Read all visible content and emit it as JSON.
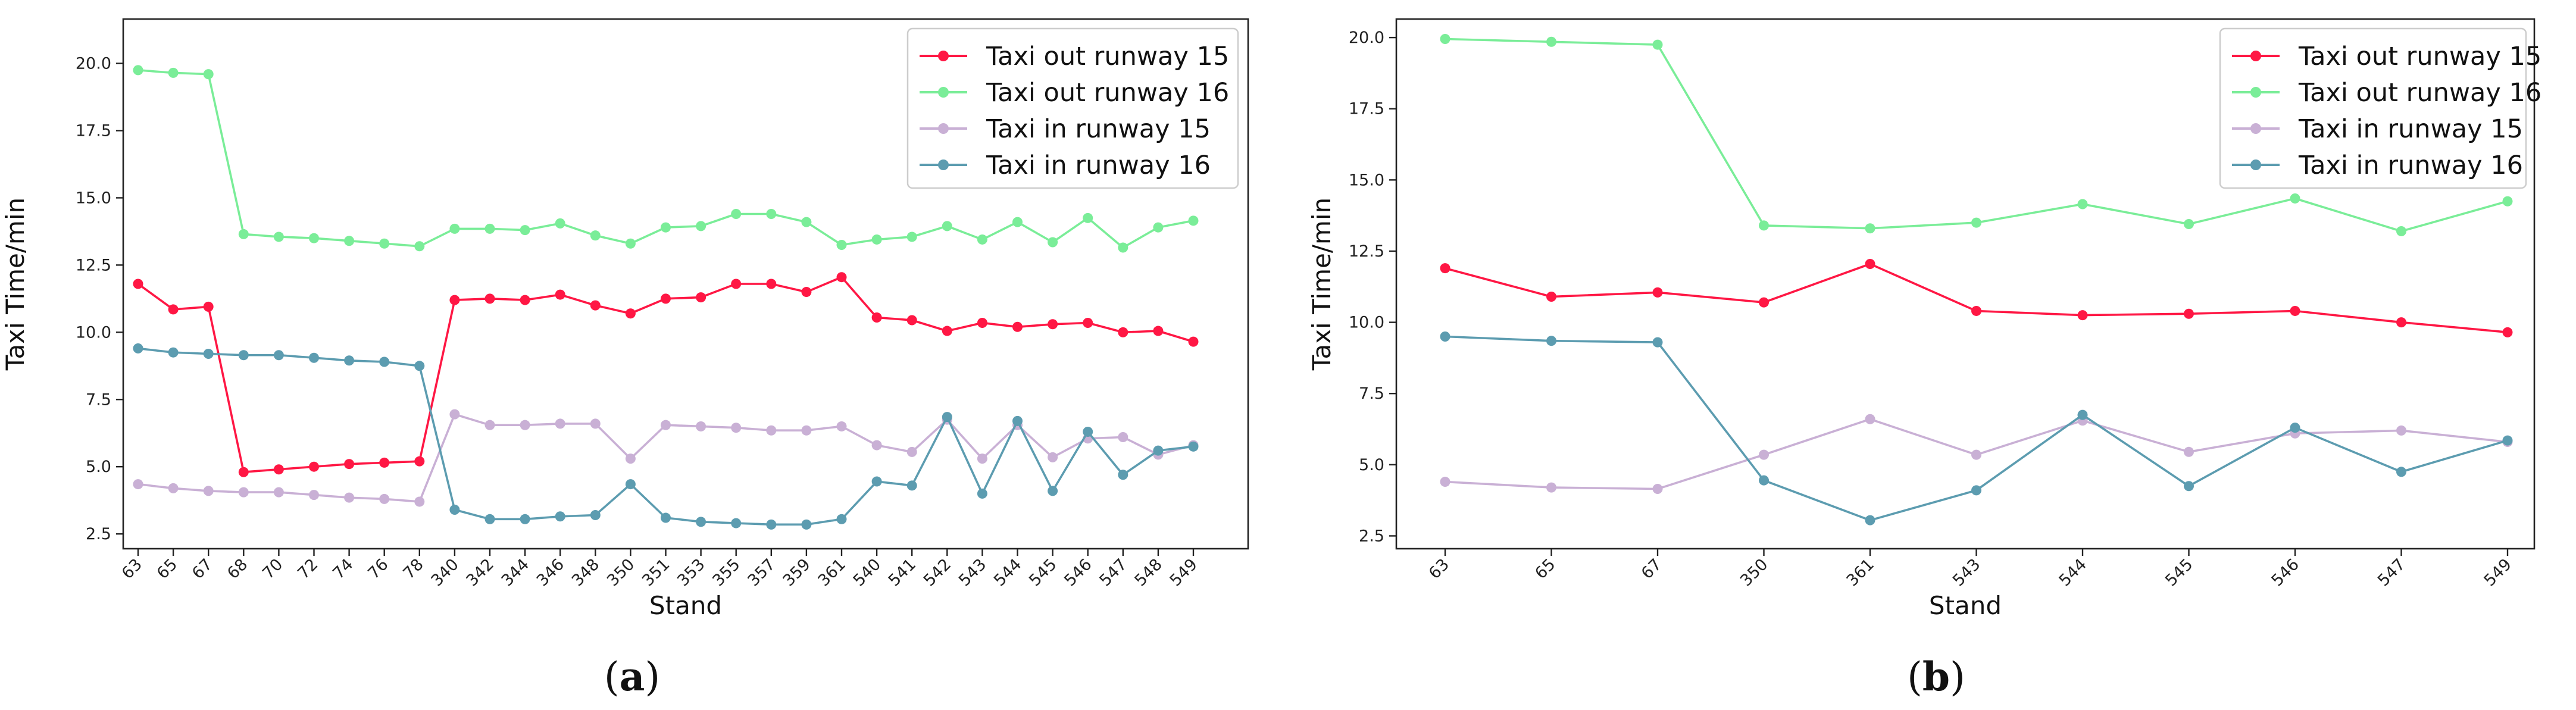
{
  "chart_data": [
    {
      "type": "line",
      "panel": "a",
      "caption_letter": "a",
      "categories": [
        "63",
        "65",
        "67",
        "68",
        "70",
        "72",
        "74",
        "76",
        "78",
        "340",
        "342",
        "344",
        "346",
        "348",
        "350",
        "351",
        "353",
        "355",
        "357",
        "359",
        "361",
        "540",
        "541",
        "542",
        "543",
        "544",
        "545",
        "546",
        "547",
        "548",
        "549"
      ],
      "series": [
        {
          "name": "Taxi out runway 15",
          "color": "#ff1744",
          "values": [
            11.8,
            10.85,
            10.95,
            4.8,
            4.9,
            5.0,
            5.1,
            5.15,
            5.2,
            11.2,
            11.25,
            11.2,
            11.4,
            11.0,
            10.7,
            11.25,
            11.3,
            11.8,
            11.8,
            11.5,
            12.05,
            10.55,
            10.45,
            10.05,
            10.35,
            10.2,
            10.3,
            10.35,
            10.0,
            10.05,
            9.65
          ]
        },
        {
          "name": "Taxi out runway 16",
          "color": "#7aed98",
          "values": [
            19.75,
            19.65,
            19.6,
            13.65,
            13.55,
            13.5,
            13.4,
            13.3,
            13.2,
            13.85,
            13.85,
            13.8,
            14.05,
            13.6,
            13.3,
            13.9,
            13.95,
            14.4,
            14.4,
            14.1,
            13.25,
            13.45,
            13.55,
            13.95,
            13.45,
            14.1,
            13.35,
            14.25,
            13.15,
            13.9,
            14.15
          ]
        },
        {
          "name": "Taxi in runway 15",
          "color": "#c9b0d5",
          "values": [
            4.35,
            4.2,
            4.1,
            4.05,
            4.05,
            3.95,
            3.85,
            3.8,
            3.7,
            6.95,
            6.55,
            6.55,
            6.6,
            6.6,
            5.3,
            6.55,
            6.5,
            6.45,
            6.35,
            6.35,
            6.5,
            5.8,
            5.55,
            6.75,
            5.3,
            6.55,
            5.35,
            6.05,
            6.1,
            5.45,
            5.8
          ]
        },
        {
          "name": "Taxi in runway 16",
          "color": "#5c9cb0",
          "values": [
            9.4,
            9.25,
            9.2,
            9.15,
            9.15,
            9.05,
            8.95,
            8.9,
            8.75,
            3.4,
            3.05,
            3.05,
            3.15,
            3.2,
            4.35,
            3.1,
            2.95,
            2.9,
            2.85,
            2.85,
            3.05,
            4.45,
            4.3,
            6.85,
            4.0,
            6.7,
            4.1,
            6.3,
            4.7,
            5.6,
            5.75
          ]
        }
      ],
      "title": "",
      "xlabel": "Stand",
      "ylabel": "Taxi Time/min",
      "ylim": [
        1.95,
        21.65
      ],
      "yticks": [
        "2.5",
        "5.0",
        "7.5",
        "10.0",
        "12.5",
        "15.0",
        "17.5",
        "20.0"
      ],
      "grid": false,
      "legend": "top-right"
    },
    {
      "type": "line",
      "panel": "b",
      "caption_letter": "b",
      "categories": [
        "63",
        "65",
        "67",
        "350",
        "361",
        "543",
        "544",
        "545",
        "546",
        "547",
        "549"
      ],
      "series": [
        {
          "name": "Taxi out runway 15",
          "color": "#ff1744",
          "values": [
            11.9,
            10.9,
            11.05,
            10.7,
            12.05,
            10.4,
            10.25,
            10.3,
            10.4,
            10.0,
            9.65
          ]
        },
        {
          "name": "Taxi out runway 16",
          "color": "#7aed98",
          "values": [
            19.95,
            19.85,
            19.75,
            13.4,
            13.3,
            13.5,
            14.15,
            13.45,
            14.35,
            13.2,
            14.25
          ]
        },
        {
          "name": "Taxi in runway 15",
          "color": "#c9b0d5",
          "values": [
            4.4,
            4.2,
            4.15,
            5.35,
            6.6,
            5.35,
            6.55,
            5.45,
            6.1,
            6.2,
            5.8
          ]
        },
        {
          "name": "Taxi in runway 16",
          "color": "#5c9cb0",
          "values": [
            9.5,
            9.35,
            9.3,
            4.45,
            3.05,
            4.1,
            6.75,
            4.25,
            6.3,
            4.75,
            5.85
          ]
        }
      ],
      "title": "",
      "xlabel": "Stand",
      "ylabel": "Taxi Time/min",
      "ylim": [
        2.05,
        20.65
      ],
      "yticks": [
        "2.5",
        "5.0",
        "7.5",
        "10.0",
        "12.5",
        "15.0",
        "17.5",
        "20.0"
      ],
      "grid": false,
      "legend": "top-right"
    }
  ]
}
